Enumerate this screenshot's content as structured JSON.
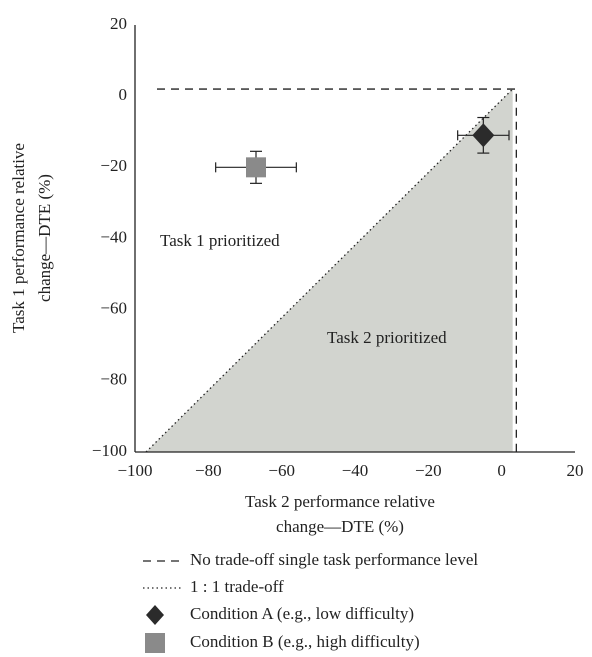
{
  "chart_data": {
    "type": "scatter",
    "x_label": [
      "Task 2 performance relative",
      "change—DTE (%)"
    ],
    "y_label": [
      "Task 1 performance relative",
      "change—DTE (%)"
    ],
    "xlim": [
      -100,
      20
    ],
    "ylim": [
      -100,
      20
    ],
    "xticks": [
      {
        "value": -100,
        "label": "−100"
      },
      {
        "value": -80,
        "label": "−80"
      },
      {
        "value": -60,
        "label": "−60"
      },
      {
        "value": -40,
        "label": "−40"
      },
      {
        "value": -20,
        "label": "−20"
      },
      0,
      20
    ],
    "yticks": [
      20,
      0,
      {
        "value": -20,
        "label": "−20"
      },
      {
        "value": -40,
        "label": "−40"
      },
      {
        "value": -60,
        "label": "−60"
      },
      {
        "value": -80,
        "label": "−80"
      },
      {
        "value": -100,
        "label": "−100"
      }
    ],
    "reference_lines": [
      {
        "name": "No trade-off single task performance level",
        "style": "dashed",
        "x": [
          -94,
          4,
          4
        ],
        "y": [
          2,
          2,
          -100
        ]
      },
      {
        "name": "1 : 1 trade-off",
        "style": "dotted",
        "x": [
          -97,
          3
        ],
        "y": [
          -100,
          2
        ]
      }
    ],
    "shade_color": "#d2d4cf",
    "annotations": [
      "Task 1 prioritized",
      "Task 2 prioritized"
    ],
    "series": [
      {
        "name": "Condition A (e.g., low difficulty)",
        "color": "#2b2b2b",
        "marker": "diamond",
        "x": [
          -5
        ],
        "values": [
          -11
        ],
        "xerr": [
          7
        ],
        "yerr": [
          5
        ]
      },
      {
        "name": "Condition B (e.g., high difficulty)",
        "color": "#8a8a8a",
        "marker": "square",
        "x": [
          -67
        ],
        "values": [
          -20
        ],
        "xerr": [
          11
        ],
        "yerr": [
          4.5
        ]
      }
    ]
  }
}
